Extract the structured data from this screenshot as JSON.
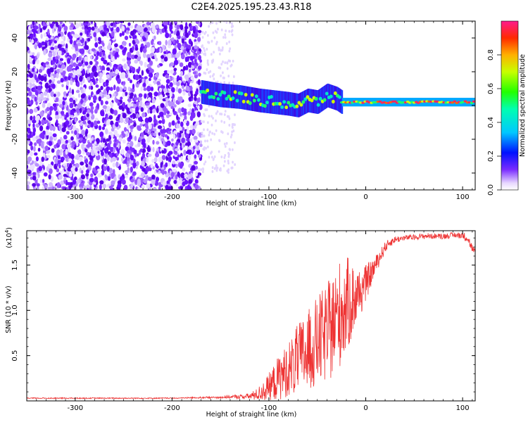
{
  "title": "C2E4.2025.195.23.43.R18",
  "colors": {
    "snr_line": "#ee3333",
    "spectrogram_low": "#6a00ff",
    "frame": "#000000"
  },
  "colorbar": {
    "label": "Normalized spectral amplitude",
    "ticks": [
      "0.0",
      "0.2",
      "0.4",
      "0.6",
      "0.8"
    ],
    "tick_values": [
      0.0,
      0.2,
      0.4,
      0.6,
      0.8
    ],
    "range": [
      0,
      1
    ],
    "colormap": "rainbow"
  },
  "chart_data": [
    {
      "type": "heatmap",
      "title": "C2E4.2025.195.23.43.R18",
      "xlabel": "Height of straight line (km)",
      "ylabel": "Frequency (Hz)",
      "xlim": [
        -350,
        113
      ],
      "ylim": [
        -50,
        50
      ],
      "xticks": [
        "-300",
        "-200",
        "-100",
        "0",
        "100"
      ],
      "xtick_values": [
        -300,
        -200,
        -100,
        0,
        100
      ],
      "yticks": [
        "-40",
        "-20",
        "0",
        "20",
        "40"
      ],
      "ytick_values": [
        -40,
        -20,
        0,
        20,
        40
      ],
      "noise_region_km": [
        -350,
        -170
      ],
      "signal_track": {
        "x": [
          -170,
          -150,
          -130,
          -110,
          -95,
          -80,
          -70,
          -60,
          -50,
          -40,
          -30,
          -25,
          -10,
          0,
          20,
          50,
          80,
          100,
          113
        ],
        "y": [
          8,
          6,
          5,
          3,
          2,
          1,
          0,
          3,
          2,
          6,
          4,
          2,
          2,
          2,
          2,
          2,
          2,
          2,
          2
        ]
      }
    },
    {
      "type": "line",
      "xlabel": "Height of straight line (km)",
      "ylabel": "SNR (10 * v/v)",
      "y_multiplier": "(x10",
      "y_multiplier_exponent": "4",
      "xlim": [
        -350,
        113
      ],
      "ylim": [
        0,
        1.88
      ],
      "xticks": [
        "-300",
        "-200",
        "-100",
        "0",
        "100"
      ],
      "xtick_values": [
        -300,
        -200,
        -100,
        0,
        100
      ],
      "yticks": [
        "0.5",
        "1.0",
        "1.5"
      ],
      "ytick_values": [
        0.5,
        1.0,
        1.5
      ],
      "series": [
        {
          "x": [
            -350,
            -300,
            -250,
            -200,
            -150,
            -120,
            -110,
            -100,
            -90,
            -80,
            -70,
            -60,
            -50,
            -40,
            -30,
            -25,
            -20,
            -15,
            -10,
            -5,
            0,
            5,
            10,
            15,
            20,
            25,
            30,
            40,
            50,
            60,
            70,
            80,
            90,
            100,
            105,
            110,
            113
          ],
          "y": [
            0.03,
            0.03,
            0.03,
            0.03,
            0.04,
            0.05,
            0.08,
            0.15,
            0.25,
            0.35,
            0.45,
            0.55,
            0.65,
            0.75,
            0.9,
            1.0,
            1.05,
            1.1,
            1.15,
            1.2,
            1.3,
            1.4,
            1.5,
            1.6,
            1.7,
            1.75,
            1.78,
            1.8,
            1.81,
            1.82,
            1.82,
            1.82,
            1.83,
            1.83,
            1.8,
            1.68,
            1.62
          ],
          "spread": [
            0,
            0,
            0,
            0,
            0.01,
            0.03,
            0.08,
            0.15,
            0.25,
            0.3,
            0.4,
            0.45,
            0.5,
            0.55,
            0.6,
            0.6,
            0.55,
            0.45,
            0.35,
            0.25,
            0.2,
            0.15,
            0.1,
            0.08,
            0.06,
            0.05,
            0.04,
            0.03,
            0.03,
            0.03,
            0.03,
            0.03,
            0.03,
            0.04,
            0.05,
            0.05,
            0.05
          ]
        }
      ]
    }
  ]
}
